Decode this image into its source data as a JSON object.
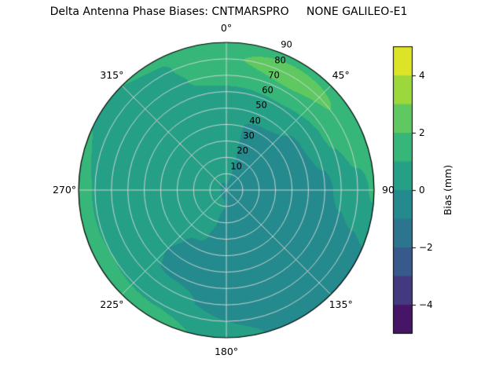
{
  "title": "Delta Antenna Phase Biases: CNTMARSPRO     NONE GALILEO-E1",
  "chart_data": {
    "type": "heatmap",
    "projection": "polar",
    "title": "Delta Antenna Phase Biases: CNTMARSPRO     NONE GALILEO-E1",
    "grid": true,
    "azimuth_tick_degrees": [
      0,
      45,
      90,
      135,
      180,
      225,
      270,
      315
    ],
    "azimuth_tick_labels": [
      "0°",
      "45°",
      "90",
      "135°",
      "180°",
      "225°",
      "270°",
      "315°"
    ],
    "radial_tick_values": [
      10,
      20,
      30,
      40,
      50,
      60,
      70,
      80,
      90
    ],
    "radial_tick_labels": [
      "10",
      "20",
      "30",
      "40",
      "50",
      "60",
      "70",
      "80",
      "90"
    ],
    "radial_axis_max": 90,
    "radial_label_azimuth_deg": 22.5,
    "colormap": "viridis",
    "colormap_stops": [
      "#440154",
      "#482878",
      "#3e4a89",
      "#31688e",
      "#26828e",
      "#21918c",
      "#28ae80",
      "#44be70",
      "#7ad151",
      "#bddf26",
      "#fde725"
    ],
    "value_range_mm": [
      -5,
      5
    ],
    "contour_level_step_mm": 1,
    "colorbar": {
      "label": "Bias (mm)",
      "ticks": [
        4,
        2,
        0,
        -2,
        -4
      ],
      "tick_labels": [
        "4",
        "2",
        "0",
        "−2",
        "−4"
      ]
    },
    "field": {
      "units": "mm",
      "azimuth_deg": [
        0,
        30,
        60,
        90,
        120,
        150,
        180,
        210,
        240,
        270,
        300,
        330
      ],
      "zenith_deg": [
        0,
        10,
        20,
        30,
        40,
        50,
        60,
        70,
        80,
        90
      ],
      "bias_mm": [
        [
          -0.1,
          0.2,
          0.3,
          0.2,
          0.1,
          0.3,
          0.8,
          1.5,
          1.9,
          1.6
        ],
        [
          -0.1,
          -0.1,
          -0.2,
          -0.2,
          -0.1,
          0.2,
          0.9,
          1.9,
          2.5,
          1.7
        ],
        [
          -0.1,
          -0.2,
          -0.3,
          -0.4,
          -0.3,
          -0.1,
          0.4,
          1.2,
          1.9,
          1.8
        ],
        [
          -0.1,
          -0.3,
          -0.4,
          -0.5,
          -0.5,
          -0.4,
          -0.2,
          0.2,
          0.7,
          1.1
        ],
        [
          -0.1,
          -0.3,
          -0.5,
          -0.6,
          -0.7,
          -0.7,
          -0.6,
          -0.5,
          -0.4,
          -0.2
        ],
        [
          -0.1,
          -0.2,
          -0.4,
          -0.6,
          -0.7,
          -0.8,
          -0.8,
          -0.7,
          -0.6,
          -0.4
        ],
        [
          -0.1,
          0.0,
          -0.2,
          -0.4,
          -0.5,
          -0.6,
          -0.6,
          -0.4,
          0.0,
          0.4
        ],
        [
          -0.1,
          0.1,
          0.2,
          0.1,
          -0.1,
          -0.2,
          -0.1,
          0.3,
          0.9,
          1.5
        ],
        [
          -0.1,
          0.2,
          0.4,
          0.4,
          0.3,
          0.2,
          0.2,
          0.4,
          1.0,
          1.6
        ],
        [
          -0.1,
          0.3,
          0.6,
          0.7,
          0.6,
          0.4,
          0.3,
          0.4,
          0.9,
          1.9
        ],
        [
          -0.1,
          0.2,
          0.6,
          0.8,
          0.8,
          0.6,
          0.3,
          0.2,
          0.3,
          0.9
        ],
        [
          -0.1,
          0.1,
          0.4,
          0.6,
          0.7,
          0.7,
          0.7,
          0.8,
          0.9,
          1.1
        ]
      ]
    }
  }
}
